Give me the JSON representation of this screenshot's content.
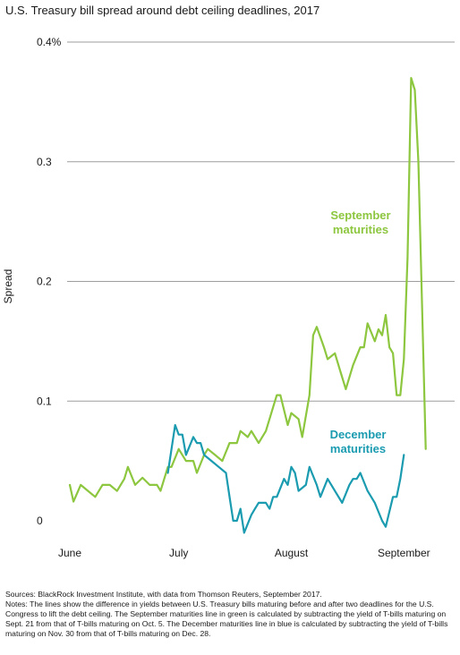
{
  "title": "U.S. Treasury bill spread around debt ceiling deadlines, 2017",
  "sources": "Sources: BlackRock Investment Institute, with data from Thomson Reuters, September 2017.",
  "notes": "Notes: The lines show the difference in yields between U.S. Treasury bills maturing before and after two deadlines for the U.S. Congress to lift the debt ceiling. The September maturities line in green is calculated by subtracting the yield of T-bills maturing on Sept. 21 from that of T-bills maturing on Oct. 5. The December maturities line in blue is calculated by subtracting the yield of T-bills maturing on Nov. 30 from that of T-bills maturing on Dec. 28.",
  "colors": {
    "september": "#8dc63f",
    "december": "#1a9bb0",
    "grid": "#9e9e9e"
  },
  "chart_data": {
    "type": "line",
    "ylabel": "Spread",
    "ylim": [
      0,
      0.4
    ],
    "y_ticks": [
      {
        "value": 0.4,
        "label": "0.4%"
      },
      {
        "value": 0.3,
        "label": "0.3"
      },
      {
        "value": 0.2,
        "label": "0.2"
      },
      {
        "value": 0.1,
        "label": "0.1"
      },
      {
        "value": 0,
        "label": "0"
      }
    ],
    "x_ticks": [
      {
        "day": 0,
        "label": "June"
      },
      {
        "day": 30,
        "label": "July"
      },
      {
        "day": 61,
        "label": "August"
      },
      {
        "day": 92,
        "label": "September"
      }
    ],
    "x_range_days": [
      0,
      104
    ],
    "grid": "horizontal",
    "annotations": [
      {
        "series": "September",
        "text": [
          "September",
          "maturities"
        ]
      },
      {
        "series": "December",
        "text": [
          "December",
          "maturities"
        ]
      }
    ],
    "series": [
      {
        "name": "September maturities",
        "color": "#8dc63f",
        "points": [
          [
            0,
            0.03
          ],
          [
            1,
            0.016
          ],
          [
            3,
            0.03
          ],
          [
            5,
            0.025
          ],
          [
            7,
            0.02
          ],
          [
            9,
            0.03
          ],
          [
            11,
            0.03
          ],
          [
            13,
            0.025
          ],
          [
            15,
            0.035
          ],
          [
            16,
            0.045
          ],
          [
            18,
            0.03
          ],
          [
            20,
            0.036
          ],
          [
            22,
            0.03
          ],
          [
            24,
            0.03
          ],
          [
            25,
            0.025
          ],
          [
            27,
            0.045
          ],
          [
            28,
            0.045
          ],
          [
            30,
            0.06
          ],
          [
            32,
            0.05
          ],
          [
            34,
            0.05
          ],
          [
            35,
            0.04
          ],
          [
            37,
            0.055
          ],
          [
            38,
            0.06
          ],
          [
            40,
            0.055
          ],
          [
            42,
            0.05
          ],
          [
            44,
            0.065
          ],
          [
            46,
            0.065
          ],
          [
            47,
            0.075
          ],
          [
            49,
            0.07
          ],
          [
            50,
            0.075
          ],
          [
            52,
            0.065
          ],
          [
            54,
            0.075
          ],
          [
            56,
            0.095
          ],
          [
            57,
            0.105
          ],
          [
            58,
            0.105
          ],
          [
            60,
            0.08
          ],
          [
            61,
            0.09
          ],
          [
            63,
            0.085
          ],
          [
            64,
            0.07
          ],
          [
            66,
            0.105
          ],
          [
            67,
            0.155
          ],
          [
            68,
            0.162
          ],
          [
            70,
            0.145
          ],
          [
            71,
            0.135
          ],
          [
            73,
            0.14
          ],
          [
            75,
            0.12
          ],
          [
            76,
            0.11
          ],
          [
            78,
            0.13
          ],
          [
            80,
            0.145
          ],
          [
            81,
            0.145
          ],
          [
            82,
            0.165
          ],
          [
            84,
            0.15
          ],
          [
            85,
            0.16
          ],
          [
            86,
            0.155
          ],
          [
            87,
            0.172
          ],
          [
            88,
            0.145
          ],
          [
            89,
            0.14
          ],
          [
            90,
            0.105
          ],
          [
            91,
            0.105
          ],
          [
            92,
            0.135
          ],
          [
            93,
            0.22
          ],
          [
            94,
            0.37
          ],
          [
            95,
            0.36
          ],
          [
            96,
            0.3
          ],
          [
            98,
            0.06
          ]
        ]
      },
      {
        "name": "December maturities",
        "color": "#1a9bb0",
        "points": [
          [
            27,
            0.04
          ],
          [
            29,
            0.08
          ],
          [
            30,
            0.072
          ],
          [
            31,
            0.072
          ],
          [
            32,
            0.055
          ],
          [
            34,
            0.07
          ],
          [
            35,
            0.065
          ],
          [
            36,
            0.065
          ],
          [
            37,
            0.055
          ],
          [
            39,
            0.05
          ],
          [
            41,
            0.045
          ],
          [
            43,
            0.04
          ],
          [
            44,
            0.02
          ],
          [
            45,
            0.0
          ],
          [
            46,
            0.0
          ],
          [
            47,
            0.01
          ],
          [
            48,
            -0.01
          ],
          [
            50,
            0.005
          ],
          [
            51,
            0.01
          ],
          [
            52,
            0.015
          ],
          [
            54,
            0.015
          ],
          [
            55,
            0.01
          ],
          [
            56,
            0.02
          ],
          [
            57,
            0.02
          ],
          [
            59,
            0.035
          ],
          [
            60,
            0.03
          ],
          [
            61,
            0.045
          ],
          [
            62,
            0.04
          ],
          [
            63,
            0.025
          ],
          [
            65,
            0.03
          ],
          [
            66,
            0.045
          ],
          [
            68,
            0.03
          ],
          [
            69,
            0.02
          ],
          [
            71,
            0.035
          ],
          [
            72,
            0.03
          ],
          [
            73,
            0.025
          ],
          [
            75,
            0.015
          ],
          [
            77,
            0.03
          ],
          [
            78,
            0.035
          ],
          [
            79,
            0.035
          ],
          [
            80,
            0.04
          ],
          [
            82,
            0.025
          ],
          [
            84,
            0.015
          ],
          [
            86,
            0.0
          ],
          [
            87,
            -0.005
          ],
          [
            89,
            0.02
          ],
          [
            90,
            0.02
          ],
          [
            91,
            0.035
          ],
          [
            92,
            0.055
          ]
        ]
      }
    ]
  }
}
